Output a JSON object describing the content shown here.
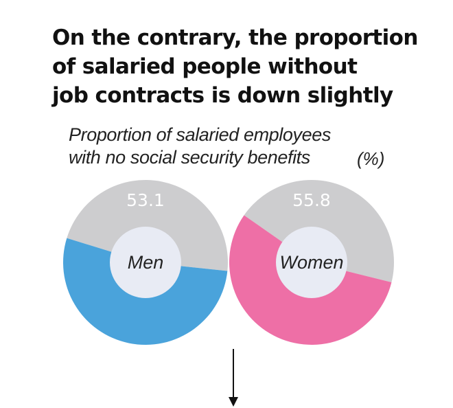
{
  "title_lines": [
    "On the contrary, the proportion",
    "of salaried people without",
    "job contracts is down slightly"
  ],
  "subtitle_lines": [
    "Proportion of salaried employees",
    "with no social security benefits"
  ],
  "unit_label": "(%)",
  "colors": {
    "men": "#4aa3db",
    "women": "#ee6fa6",
    "remainder": "#cdcdcf",
    "center": "#e8ebf4"
  },
  "chart_data": [
    {
      "type": "pie",
      "center_label": "Men",
      "value": 53.1,
      "value_label": "53.1",
      "remainder": 46.9,
      "color_key": "men"
    },
    {
      "type": "pie",
      "center_label": "Women",
      "value": 55.8,
      "value_label": "55.8",
      "remainder": 44.2,
      "color_key": "women"
    }
  ]
}
